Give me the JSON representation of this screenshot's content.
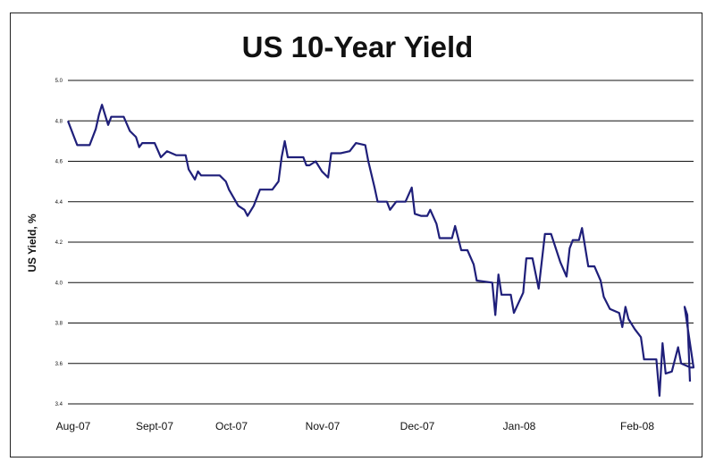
{
  "chart_data": {
    "type": "line",
    "title": "US 10-Year Yield",
    "ylabel": "US Yield, %",
    "xlabel": "",
    "ylim": [
      3.4,
      5.0
    ],
    "yticks": [
      "5.0",
      "4.8",
      "4.6",
      "4.4",
      "4.2",
      "4.0",
      "3.8",
      "3.6",
      "3.4"
    ],
    "xtick_labels": [
      "Aug-07",
      "Sept-07",
      "Oct-07",
      "Nov-07",
      "Dec-07",
      "Jan-08",
      "Feb-08"
    ],
    "x_range": [
      "2007-08-01",
      "2008-02-19"
    ],
    "grid": true,
    "line_color": "#1f1f7a",
    "series": [
      {
        "values": [
          [
            "2007-08-01",
            4.8
          ],
          [
            "2007-08-03",
            4.72
          ],
          [
            "2007-08-04",
            4.68
          ],
          [
            "2007-08-08",
            4.68
          ],
          [
            "2007-08-10",
            4.76
          ],
          [
            "2007-08-11",
            4.83
          ],
          [
            "2007-08-12",
            4.88
          ],
          [
            "2007-08-14",
            4.78
          ],
          [
            "2007-08-15",
            4.82
          ],
          [
            "2007-08-16",
            4.82
          ],
          [
            "2007-08-19",
            4.82
          ],
          [
            "2007-08-21",
            4.75
          ],
          [
            "2007-08-23",
            4.72
          ],
          [
            "2007-08-24",
            4.67
          ],
          [
            "2007-08-25",
            4.69
          ],
          [
            "2007-08-29",
            4.69
          ],
          [
            "2007-08-31",
            4.62
          ],
          [
            "2007-09-02",
            4.65
          ],
          [
            "2007-09-05",
            4.63
          ],
          [
            "2007-09-08",
            4.63
          ],
          [
            "2007-09-09",
            4.56
          ],
          [
            "2007-09-11",
            4.51
          ],
          [
            "2007-09-12",
            4.55
          ],
          [
            "2007-09-13",
            4.53
          ],
          [
            "2007-09-19",
            4.53
          ],
          [
            "2007-09-21",
            4.5
          ],
          [
            "2007-09-22",
            4.46
          ],
          [
            "2007-09-25",
            4.38
          ],
          [
            "2007-09-27",
            4.36
          ],
          [
            "2007-09-28",
            4.33
          ],
          [
            "2007-09-30",
            4.38
          ],
          [
            "2007-10-02",
            4.46
          ],
          [
            "2007-10-03",
            4.46
          ],
          [
            "2007-10-06",
            4.46
          ],
          [
            "2007-10-08",
            4.5
          ],
          [
            "2007-10-09",
            4.62
          ],
          [
            "2007-10-10",
            4.7
          ],
          [
            "2007-10-11",
            4.62
          ],
          [
            "2007-10-14",
            4.62
          ],
          [
            "2007-10-16",
            4.62
          ],
          [
            "2007-10-17",
            4.58
          ],
          [
            "2007-10-18",
            4.58
          ],
          [
            "2007-10-20",
            4.6
          ],
          [
            "2007-10-22",
            4.55
          ],
          [
            "2007-10-24",
            4.52
          ],
          [
            "2007-10-25",
            4.64
          ],
          [
            "2007-10-28",
            4.64
          ],
          [
            "2007-10-31",
            4.65
          ],
          [
            "2007-11-02",
            4.69
          ],
          [
            "2007-11-05",
            4.68
          ],
          [
            "2007-11-06",
            4.6
          ],
          [
            "2007-11-08",
            4.47
          ],
          [
            "2007-11-09",
            4.4
          ],
          [
            "2007-11-12",
            4.4
          ],
          [
            "2007-11-13",
            4.36
          ],
          [
            "2007-11-15",
            4.4
          ],
          [
            "2007-11-18",
            4.4
          ],
          [
            "2007-11-20",
            4.47
          ],
          [
            "2007-11-21",
            4.34
          ],
          [
            "2007-11-23",
            4.33
          ],
          [
            "2007-11-25",
            4.33
          ],
          [
            "2007-11-26",
            4.36
          ],
          [
            "2007-11-28",
            4.29
          ],
          [
            "2007-11-29",
            4.22
          ],
          [
            "2007-12-03",
            4.22
          ],
          [
            "2007-12-04",
            4.28
          ],
          [
            "2007-12-06",
            4.16
          ],
          [
            "2007-12-08",
            4.16
          ],
          [
            "2007-12-10",
            4.09
          ],
          [
            "2007-12-11",
            4.01
          ],
          [
            "2007-12-16",
            4.0
          ],
          [
            "2007-12-17",
            3.84
          ],
          [
            "2007-12-18",
            4.04
          ],
          [
            "2007-12-19",
            3.94
          ],
          [
            "2007-12-22",
            3.94
          ],
          [
            "2007-12-23",
            3.85
          ],
          [
            "2007-12-26",
            3.95
          ],
          [
            "2007-12-27",
            4.12
          ],
          [
            "2007-12-29",
            4.12
          ],
          [
            "2007-12-31",
            3.97
          ],
          [
            "2008-01-02",
            4.24
          ],
          [
            "2008-01-04",
            4.24
          ],
          [
            "2008-01-07",
            4.1
          ],
          [
            "2008-01-09",
            4.03
          ],
          [
            "2008-01-10",
            4.17
          ],
          [
            "2008-01-11",
            4.21
          ],
          [
            "2008-01-13",
            4.21
          ],
          [
            "2008-01-14",
            4.27
          ],
          [
            "2008-01-16",
            4.08
          ],
          [
            "2008-01-18",
            4.08
          ],
          [
            "2008-01-20",
            4.01
          ],
          [
            "2008-01-21",
            3.93
          ],
          [
            "2008-01-23",
            3.87
          ],
          [
            "2008-01-26",
            3.85
          ],
          [
            "2008-01-27",
            3.78
          ],
          [
            "2008-01-28",
            3.88
          ],
          [
            "2008-01-29",
            3.82
          ],
          [
            "2008-01-31",
            3.77
          ],
          [
            "2008-02-02",
            3.73
          ],
          [
            "2008-02-03",
            3.62
          ],
          [
            "2008-02-07",
            3.62
          ],
          [
            "2008-02-08",
            3.44
          ],
          [
            "2008-02-09",
            3.7
          ],
          [
            "2008-02-10",
            3.55
          ],
          [
            "2008-02-12",
            3.56
          ],
          [
            "2008-02-14",
            3.68
          ],
          [
            "2008-02-15",
            3.6
          ],
          [
            "2008-02-18",
            3.58
          ],
          [
            "2008-02-19",
            3.58
          ]
        ]
      }
    ]
  }
}
